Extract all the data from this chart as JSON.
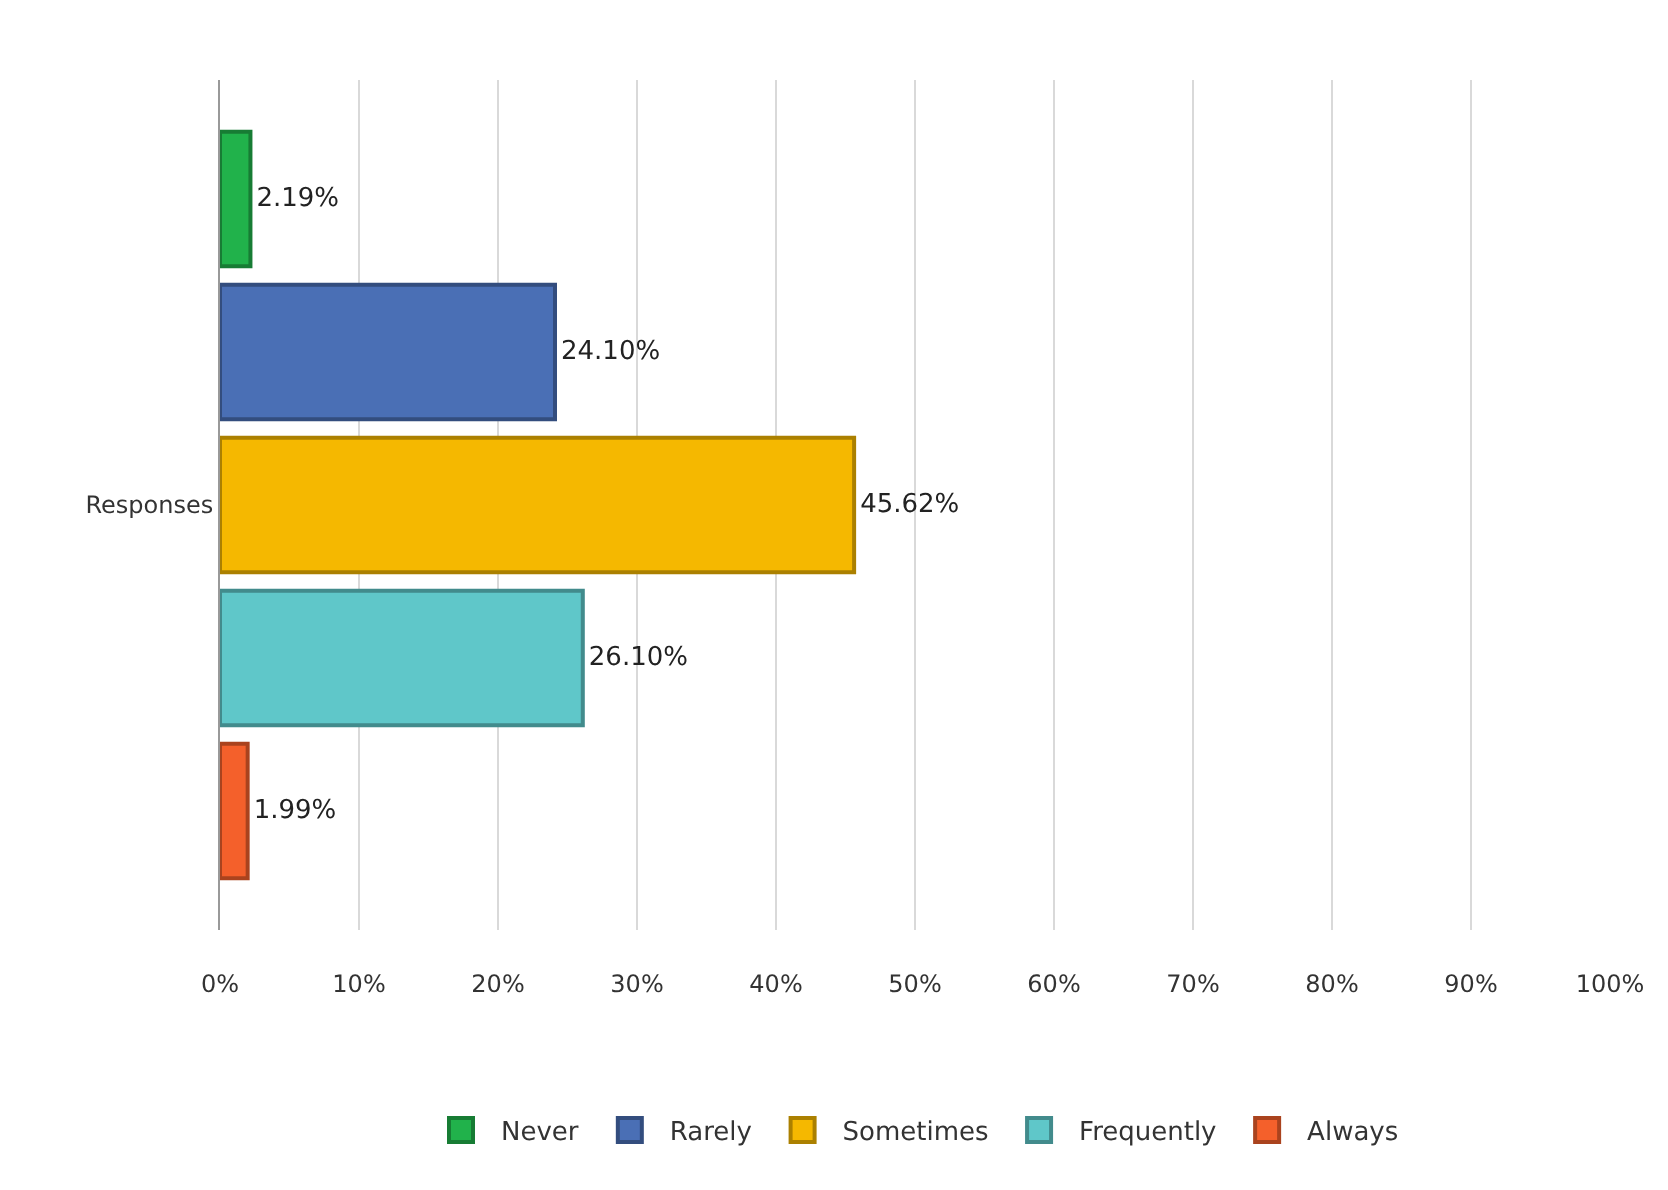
{
  "chart_data": {
    "type": "bar",
    "orientation": "horizontal",
    "categories": [
      "Responses"
    ],
    "series": [
      {
        "name": "Never",
        "color": "#21b24b",
        "values": [
          2.19
        ],
        "value_labels": [
          "2.19%"
        ]
      },
      {
        "name": "Rarely",
        "color": "#4a6fb5",
        "values": [
          24.1
        ],
        "value_labels": [
          "24.10%"
        ]
      },
      {
        "name": "Sometimes",
        "color": "#f5b800",
        "values": [
          45.62
        ],
        "value_labels": [
          "45.62%"
        ]
      },
      {
        "name": "Frequently",
        "color": "#5fc7c9",
        "values": [
          26.1
        ],
        "value_labels": [
          "26.10%"
        ]
      },
      {
        "name": "Always",
        "color": "#f4602b",
        "values": [
          1.99
        ],
        "value_labels": [
          "1.99%"
        ]
      }
    ],
    "xlim": [
      0,
      100
    ],
    "xticks": [
      {
        "value": 0,
        "label": "0%"
      },
      {
        "value": 10,
        "label": "10%"
      },
      {
        "value": 20,
        "label": "20%"
      },
      {
        "value": 30,
        "label": "30%"
      },
      {
        "value": 40,
        "label": "40%"
      },
      {
        "value": 50,
        "label": "50%"
      },
      {
        "value": 60,
        "label": "60%"
      },
      {
        "value": 70,
        "label": "70%"
      },
      {
        "value": 80,
        "label": "80%"
      },
      {
        "value": 90,
        "label": "90%"
      },
      {
        "value": 100,
        "label": "100%"
      }
    ],
    "grid": "x",
    "legend": "bottom"
  }
}
